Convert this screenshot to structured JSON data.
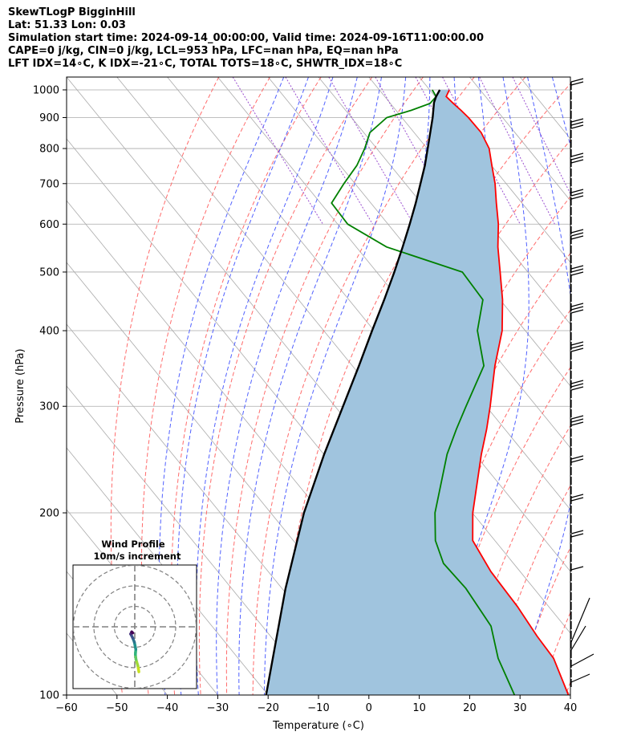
{
  "header": {
    "line1": "SkewTLogP BigginHill",
    "line2": "Lat: 51.33   Lon: 0.03",
    "line3": "Simulation start time: 2024-09-14_00:00:00, Valid time: 2024-09-16T11:00:00.00",
    "line4": "CAPE=0 j/kg, CIN=0 j/kg, LCL=953 hPa, LFC=nan hPa, EQ=nan hPa",
    "line5": "LFT IDX=14∘C, K IDX=-21∘C, TOTAL TOTS=18∘C, SHWTR_IDX=18∘C"
  },
  "colors": {
    "temperature": "#ff0000",
    "dewpoint": "#008000",
    "parcel": "#000000",
    "shade": "#a0c4de",
    "dry_adiabat": "#ff6b6b",
    "moist_adiabat": "#5060ff",
    "mixing_ratio": "#9a4ecf",
    "isotherm": "#aaaaaa"
  },
  "chart_data": {
    "type": "line",
    "subtype": "skew-T log-P",
    "xlabel": "Temperature (∘C)",
    "ylabel": "Pressure (hPa)",
    "xlim": [
      -60,
      40
    ],
    "ylim": [
      1050,
      100
    ],
    "y_scale": "log",
    "grid": true,
    "x_ticks": [
      "−60",
      "−50",
      "−40",
      "−30",
      "−20",
      "−10",
      "0",
      "10",
      "20",
      "30",
      "40"
    ],
    "y_ticks": [
      "100",
      "200",
      "300",
      "400",
      "500",
      "600",
      "700",
      "800",
      "900",
      "1000"
    ],
    "series": [
      {
        "key": "temperature",
        "points": [
          [
            1000,
            13.9
          ],
          [
            975,
            12.2
          ],
          [
            950,
            12.5
          ],
          [
            925,
            12.9
          ],
          [
            900,
            13.2
          ],
          [
            850,
            13.3
          ],
          [
            800,
            12.3
          ],
          [
            750,
            10.1
          ],
          [
            700,
            7.8
          ],
          [
            650,
            4.9
          ],
          [
            600,
            1.9
          ],
          [
            550,
            -1.9
          ],
          [
            500,
            -5.5
          ],
          [
            450,
            -9.5
          ],
          [
            400,
            -14.6
          ],
          [
            350,
            -21.7
          ],
          [
            300,
            -29.2
          ],
          [
            275,
            -33.6
          ],
          [
            250,
            -38.7
          ],
          [
            200,
            -49.9
          ],
          [
            180,
            -54.4
          ],
          [
            160,
            -55.8
          ],
          [
            140,
            -56.2
          ],
          [
            125,
            -57.1
          ],
          [
            115,
            -57.4
          ],
          [
            100,
            -60.4
          ]
        ]
      },
      {
        "key": "dewpoint",
        "points": [
          [
            1000,
            10.5
          ],
          [
            975,
            10.2
          ],
          [
            950,
            7.9
          ],
          [
            925,
            3.0
          ],
          [
            900,
            -3.0
          ],
          [
            850,
            -8.8
          ],
          [
            800,
            -12.4
          ],
          [
            750,
            -16.7
          ],
          [
            700,
            -22.2
          ],
          [
            650,
            -27.8
          ],
          [
            600,
            -28.0
          ],
          [
            550,
            -24.0
          ],
          [
            500,
            -13.0
          ],
          [
            450,
            -13.4
          ],
          [
            400,
            -19.5
          ],
          [
            350,
            -23.9
          ],
          [
            300,
            -34.0
          ],
          [
            275,
            -39.6
          ],
          [
            250,
            -45.5
          ],
          [
            200,
            -57.4
          ],
          [
            180,
            -61.8
          ],
          [
            165,
            -63.9
          ],
          [
            150,
            -63.5
          ],
          [
            130,
            -64.6
          ],
          [
            115,
            -68.4
          ],
          [
            100,
            -71.1
          ]
        ]
      },
      {
        "key": "parcel",
        "points": [
          [
            1000,
            12.0
          ],
          [
            975,
            10.2
          ],
          [
            953,
            8.8
          ],
          [
            900,
            6.1
          ],
          [
            850,
            3.2
          ],
          [
            800,
            0.1
          ],
          [
            750,
            -3.2
          ],
          [
            700,
            -7.0
          ],
          [
            650,
            -11.1
          ],
          [
            600,
            -15.7
          ],
          [
            550,
            -20.8
          ],
          [
            500,
            -26.5
          ],
          [
            450,
            -33.0
          ],
          [
            400,
            -40.4
          ],
          [
            350,
            -48.7
          ],
          [
            300,
            -58.4
          ],
          [
            250,
            -69.9
          ],
          [
            200,
            -83.4
          ],
          [
            150,
            -99.3
          ],
          [
            100,
            -120.4
          ]
        ]
      }
    ],
    "inset": {
      "title": "Wind Profile",
      "subtitle": "10m/s increment",
      "rings_ms": [
        10,
        20,
        30
      ],
      "hodograph_uv_ms": [
        [
          2.0,
          -22.0
        ],
        [
          1.5,
          -19.0
        ],
        [
          0.6,
          -16.0
        ],
        [
          0.3,
          -13.5
        ],
        [
          0.5,
          -11.0
        ],
        [
          -0.2,
          -7.5
        ],
        [
          -1.0,
          -5.5
        ],
        [
          -2.0,
          -3.5
        ],
        [
          -1.5,
          -2.5
        ],
        [
          -1.0,
          -3.0
        ]
      ]
    }
  }
}
